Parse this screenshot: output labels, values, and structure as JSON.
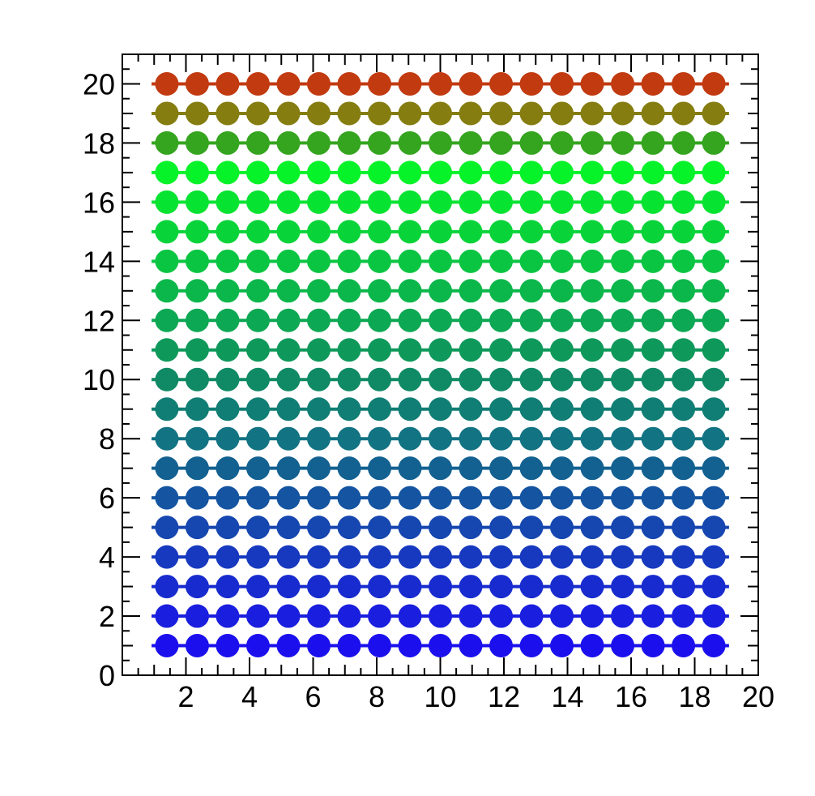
{
  "page": {
    "background_color": "#ffffff",
    "title": ""
  },
  "chart_data": {
    "type": "line",
    "title": "",
    "subtitle": "",
    "xlabel": "",
    "ylabel": "",
    "legend": null,
    "grid": false,
    "xlim": [
      0,
      20
    ],
    "ylim": [
      0,
      21
    ],
    "x_tick_labels": [
      "2",
      "4",
      "6",
      "8",
      "10",
      "12",
      "14",
      "16",
      "18",
      "20"
    ],
    "x_tick_values": [
      2,
      4,
      6,
      8,
      10,
      12,
      14,
      16,
      18,
      20
    ],
    "y_tick_labels": [
      "0",
      "2",
      "4",
      "6",
      "8",
      "10",
      "12",
      "14",
      "16",
      "18",
      "20"
    ],
    "y_tick_values": [
      0,
      2,
      4,
      6,
      8,
      10,
      12,
      14,
      16,
      18,
      20
    ],
    "minor_tick_step": 0.5,
    "tick_sides": [
      "bottom",
      "left",
      "top",
      "right"
    ],
    "axis_color": "#000000",
    "marker": "circle",
    "points_per_row": 19,
    "x_points": {
      "start": 1.4,
      "step": 0.9556,
      "count": 19
    },
    "line_x_range": [
      0.92,
      19.08
    ],
    "series": [
      {
        "name": "row-1",
        "y": 1,
        "color": "#1b10ed"
      },
      {
        "name": "row-2",
        "y": 2,
        "color": "#1a1ede"
      },
      {
        "name": "row-3",
        "y": 3,
        "color": "#182bcf"
      },
      {
        "name": "row-4",
        "y": 4,
        "color": "#1739bf"
      },
      {
        "name": "row-5",
        "y": 5,
        "color": "#1646b0"
      },
      {
        "name": "row-6",
        "y": 6,
        "color": "#1454a1"
      },
      {
        "name": "row-7",
        "y": 7,
        "color": "#136191"
      },
      {
        "name": "row-8",
        "y": 8,
        "color": "#127383"
      },
      {
        "name": "row-9",
        "y": 9,
        "color": "#107e74"
      },
      {
        "name": "row-10",
        "y": 10,
        "color": "#0f8a64"
      },
      {
        "name": "row-11",
        "y": 11,
        "color": "#0e995b"
      },
      {
        "name": "row-12",
        "y": 12,
        "color": "#0ca853"
      },
      {
        "name": "row-13",
        "y": 13,
        "color": "#0bb74a"
      },
      {
        "name": "row-14",
        "y": 14,
        "color": "#0ac542"
      },
      {
        "name": "row-15",
        "y": 15,
        "color": "#08d439"
      },
      {
        "name": "row-16",
        "y": 16,
        "color": "#07e331"
      },
      {
        "name": "row-17",
        "y": 17,
        "color": "#06f229"
      },
      {
        "name": "row-18",
        "y": 18,
        "color": "#35a51f"
      },
      {
        "name": "row-19",
        "y": 19,
        "color": "#857d10"
      },
      {
        "name": "row-20",
        "y": 20,
        "color": "#c23a10"
      }
    ]
  }
}
